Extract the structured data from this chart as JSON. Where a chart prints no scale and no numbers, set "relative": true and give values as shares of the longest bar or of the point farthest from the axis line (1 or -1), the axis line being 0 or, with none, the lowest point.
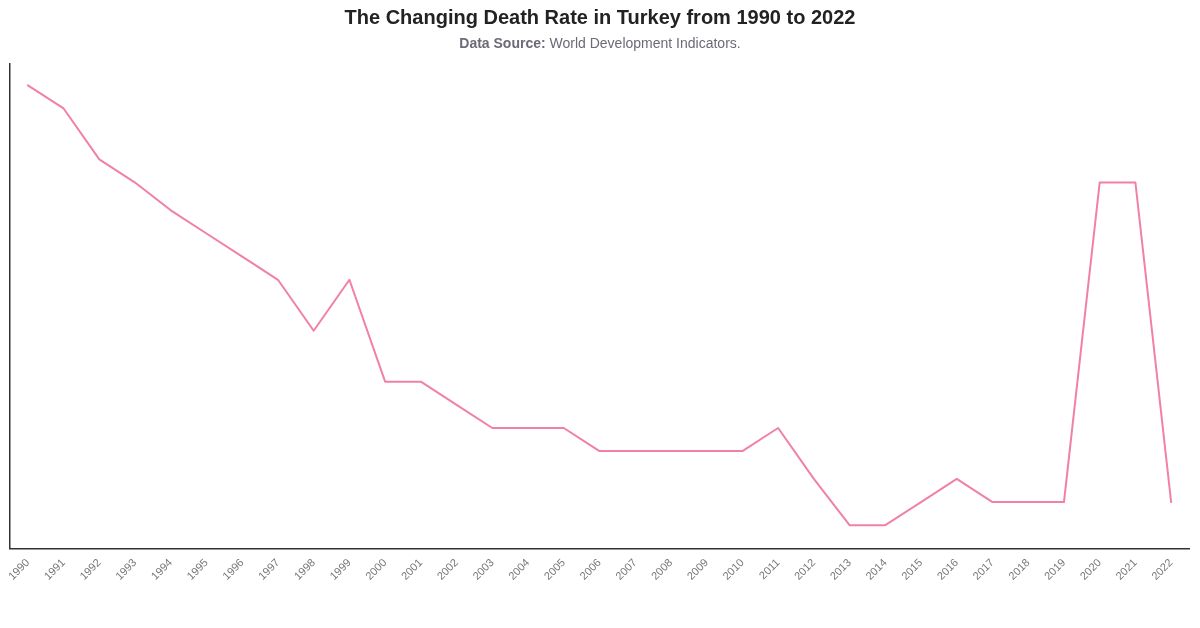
{
  "chart_data": {
    "type": "line",
    "title": "The Changing Death Rate in Turkey from 1990 to 2022",
    "subtitle": "Data Source: World Development Indicators.",
    "categories": [
      "1990",
      "1991",
      "1992",
      "1993",
      "1994",
      "1995",
      "1996",
      "1997",
      "1998",
      "1999",
      "2000",
      "2001",
      "2002",
      "2003",
      "2004",
      "2005",
      "2006",
      "2007",
      "2008",
      "2009",
      "2010",
      "2011",
      "2012",
      "2013",
      "2014",
      "2015",
      "2016",
      "2017",
      "2018",
      "2019",
      "2020",
      "2021",
      "2022"
    ],
    "series": [
      {
        "color": "#f080aa",
        "values": [
          1.0,
          0.95,
          0.84,
          0.79,
          0.73,
          0.68,
          0.63,
          0.58,
          0.47,
          0.58,
          0.36,
          0.36,
          0.31,
          0.26,
          0.26,
          0.26,
          0.21,
          0.21,
          0.21,
          0.21,
          0.21,
          0.26,
          0.15,
          0.05,
          0.05,
          0.1,
          0.15,
          0.1,
          0.1,
          0.1,
          0.79,
          0.79,
          0.1
        ]
      }
    ],
    "relative": true,
    "grid": false,
    "legend": false,
    "marker": "none",
    "line_style": "solid"
  }
}
